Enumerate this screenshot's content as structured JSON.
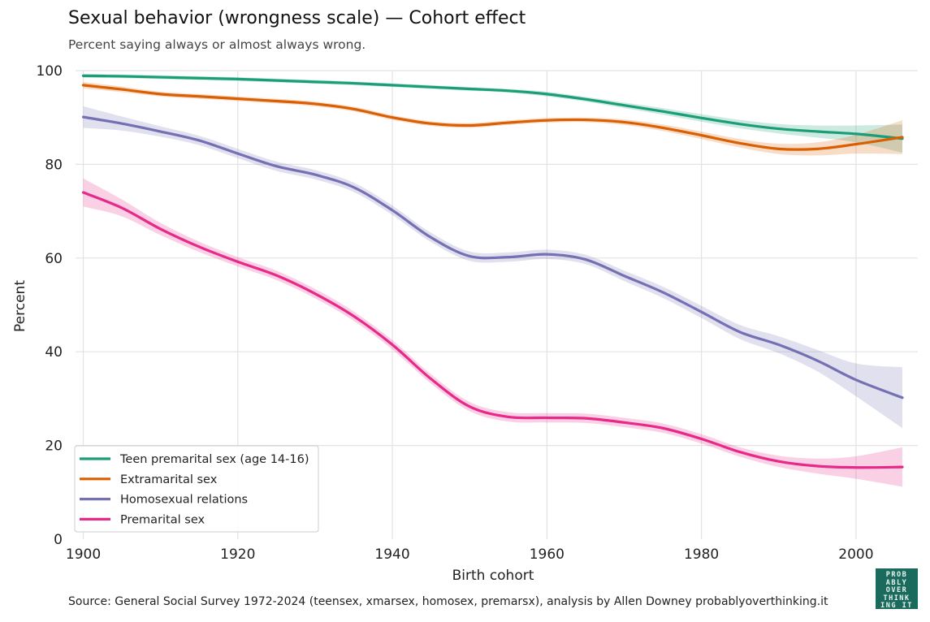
{
  "title": "Sexual behavior (wrongness scale) — Cohort effect",
  "subtitle": "Percent saying always or almost always wrong.",
  "source": "Source: General Social Survey 1972-2024 (teensex, xmarsex, homosex, premarsx), analysis by Allen Downey probablyoverthinking.it",
  "logo": {
    "lines": [
      "PROB",
      "ABLY",
      "OVER",
      "THINK",
      "ING IT"
    ]
  },
  "chart_data": {
    "type": "line",
    "title": "Sexual behavior (wrongness scale) — Cohort effect",
    "subtitle": "Percent saying always or almost always wrong.",
    "xlabel": "Birth cohort",
    "ylabel": "Percent",
    "xlim": [
      1899,
      2008
    ],
    "ylim": [
      0,
      100
    ],
    "xticks": [
      1900,
      1920,
      1940,
      1960,
      1980,
      2000
    ],
    "yticks": [
      0,
      20,
      40,
      60,
      80,
      100
    ],
    "grid": true,
    "legend_position": "bottom-left",
    "x": [
      1900,
      1905,
      1910,
      1915,
      1920,
      1925,
      1930,
      1935,
      1940,
      1945,
      1950,
      1955,
      1960,
      1965,
      1970,
      1975,
      1980,
      1985,
      1990,
      1995,
      2000,
      2006
    ],
    "series": [
      {
        "name": "Teen premarital sex (age 14-16)",
        "color": "#1b9e77",
        "values": [
          98.9,
          98.8,
          98.6,
          98.4,
          98.2,
          97.9,
          97.6,
          97.3,
          96.9,
          96.5,
          96.1,
          95.7,
          95.0,
          93.9,
          92.6,
          91.3,
          89.9,
          88.6,
          87.6,
          87.0,
          86.5,
          85.5
        ],
        "ci_half_width": [
          0.4,
          0.4,
          0.4,
          0.4,
          0.4,
          0.4,
          0.4,
          0.4,
          0.4,
          0.4,
          0.4,
          0.4,
          0.5,
          0.5,
          0.6,
          0.7,
          0.8,
          0.9,
          1.0,
          1.3,
          1.8,
          3.0
        ]
      },
      {
        "name": "Extramarital sex",
        "color": "#d95f02",
        "values": [
          96.9,
          96.0,
          95.0,
          94.5,
          94.0,
          93.5,
          92.9,
          91.8,
          90.0,
          88.7,
          88.3,
          88.9,
          89.4,
          89.5,
          89.0,
          87.8,
          86.2,
          84.5,
          83.3,
          83.3,
          84.3,
          85.8
        ],
        "ci_half_width": [
          0.7,
          0.6,
          0.5,
          0.5,
          0.5,
          0.5,
          0.5,
          0.5,
          0.5,
          0.5,
          0.5,
          0.5,
          0.5,
          0.5,
          0.6,
          0.7,
          0.8,
          0.9,
          1.1,
          1.4,
          2.0,
          3.6
        ]
      },
      {
        "name": "Homosexual relations",
        "color": "#7570b3",
        "values": [
          90.1,
          88.7,
          87.0,
          85.1,
          82.3,
          79.6,
          77.8,
          75.1,
          70.2,
          64.4,
          60.4,
          60.2,
          60.8,
          59.7,
          56.2,
          52.7,
          48.5,
          44.2,
          41.5,
          38.1,
          34.0,
          30.2
        ],
        "ci_half_width": [
          2.3,
          1.5,
          1.1,
          1.0,
          1.0,
          1.0,
          1.0,
          1.0,
          1.0,
          1.0,
          1.0,
          1.0,
          1.0,
          1.0,
          1.1,
          1.2,
          1.3,
          1.5,
          1.8,
          2.3,
          3.5,
          6.5
        ]
      },
      {
        "name": "Premarital sex",
        "color": "#e7298a",
        "values": [
          74.0,
          70.7,
          66.2,
          62.4,
          59.2,
          56.3,
          52.4,
          47.6,
          41.5,
          34.2,
          28.3,
          26.1,
          25.9,
          25.8,
          24.9,
          23.7,
          21.4,
          18.6,
          16.6,
          15.6,
          15.3,
          15.4
        ],
        "ci_half_width": [
          3.0,
          1.8,
          1.3,
          1.1,
          1.0,
          1.0,
          1.0,
          1.0,
          1.0,
          1.0,
          1.0,
          1.0,
          1.0,
          1.0,
          1.0,
          1.0,
          1.0,
          1.0,
          1.2,
          1.6,
          2.4,
          4.2
        ]
      }
    ]
  }
}
